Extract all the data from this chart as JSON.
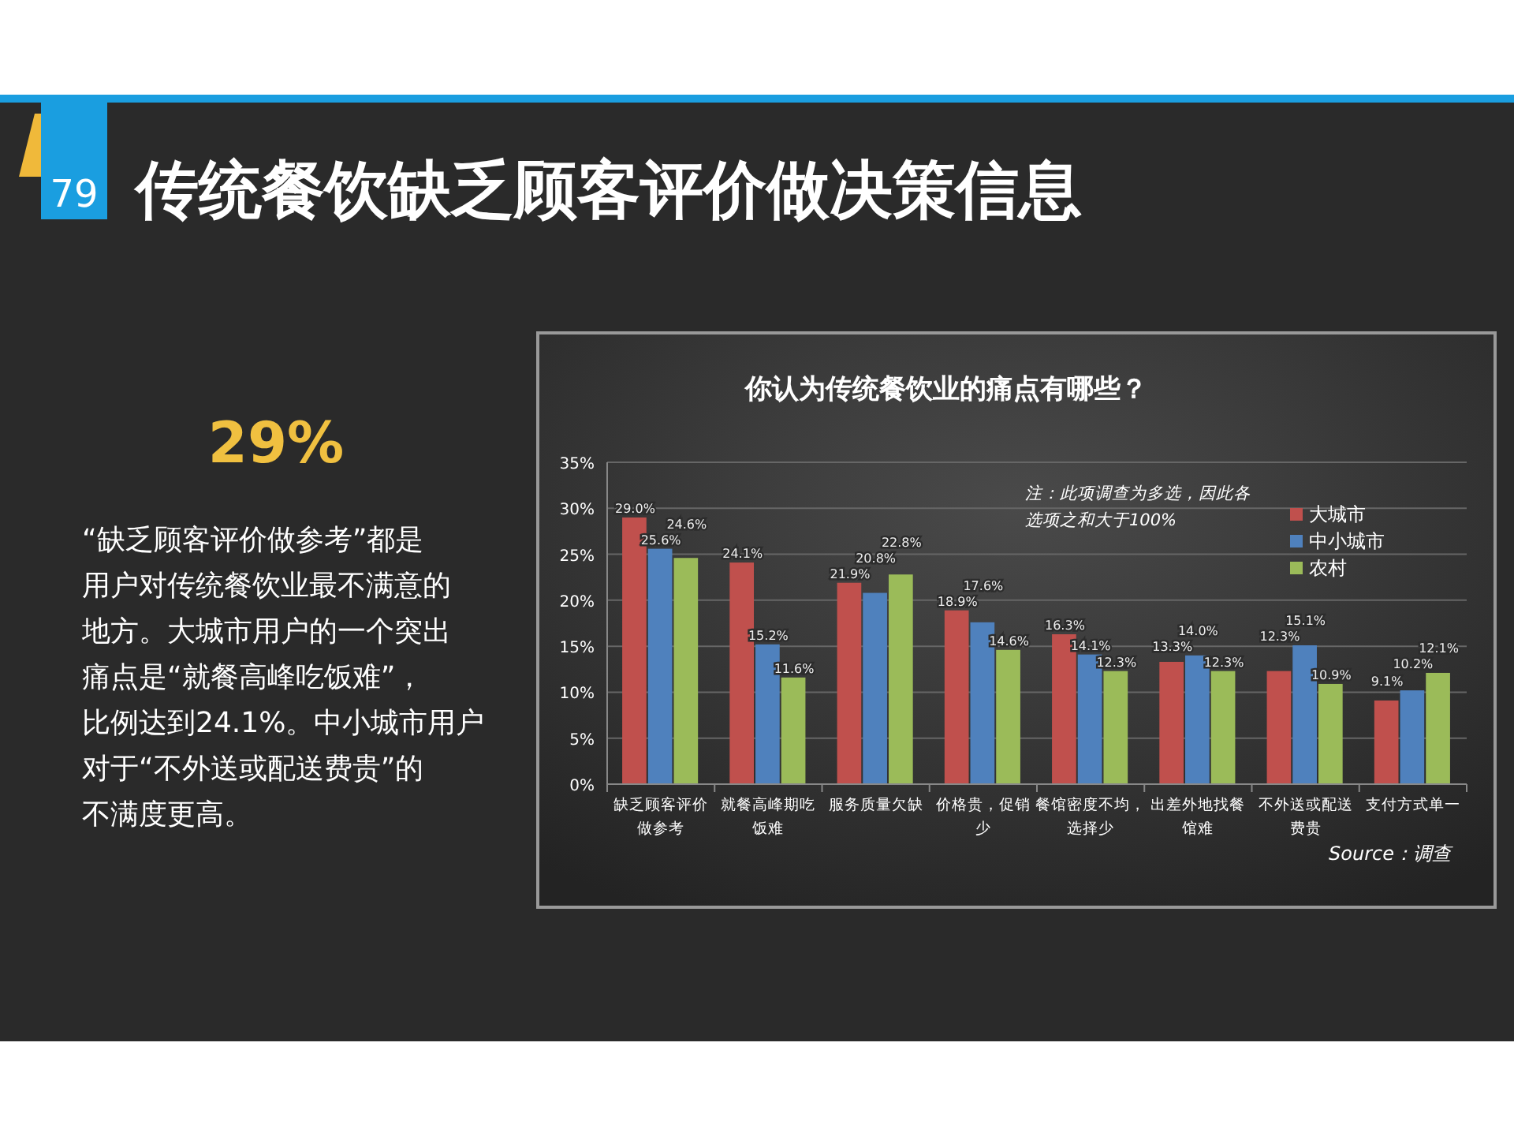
{
  "chart_data": {
    "type": "bar",
    "title": "传统餐饮缺乏顾客评价做决策信息",
    "subtitle": "你认为传统餐饮业的痛点有哪些？",
    "categories": [
      "缺乏顾客评价做参考",
      "就餐高峰期吃饭难",
      "服务质量欠缺",
      "价格贵，促销少",
      "餐馆密度不均，选择少",
      "出差外地找餐馆难",
      "不外送或配送费贵",
      "支付方式单一"
    ],
    "series": [
      {
        "name": "大城市",
        "color": "#c0504d",
        "values": [
          29.0,
          24.1,
          21.9,
          18.9,
          16.3,
          13.3,
          12.3,
          9.1
        ],
        "value_labels": [
          "29.0%",
          "24.1%",
          "21.9%",
          "18.9%",
          "16.3%",
          "13.3%",
          "12.3%",
          "9.1%"
        ]
      },
      {
        "name": "中小城市",
        "color": "#4f81bd",
        "values": [
          25.6,
          15.2,
          20.8,
          17.6,
          14.1,
          14.0,
          15.1,
          10.2
        ],
        "value_labels": [
          "25.6%",
          "15.2%",
          "20.8%",
          "17.6%",
          "14.1%",
          "14.0%",
          "15.1%",
          "10.2%"
        ]
      },
      {
        "name": "农村",
        "color": "#9bbb59",
        "values": [
          24.6,
          11.6,
          22.8,
          14.6,
          12.3,
          12.3,
          10.9,
          12.1
        ],
        "value_labels": [
          "24.6%",
          "11.6%",
          "22.8%",
          "14.6%",
          "12.3%",
          "12.3%",
          "10.9%",
          "12.1%"
        ]
      }
    ],
    "ylim": [
      0,
      35
    ],
    "yticks": [
      {
        "value": 0,
        "label": "0%"
      },
      {
        "value": 5,
        "label": "5%"
      },
      {
        "value": 10,
        "label": "10%"
      },
      {
        "value": 15,
        "label": "15%"
      },
      {
        "value": 20,
        "label": "20%"
      },
      {
        "value": 25,
        "label": "25%"
      },
      {
        "value": 30,
        "label": "30%"
      },
      {
        "value": 35,
        "label": "35%"
      }
    ],
    "grid": "y",
    "legend": "top right",
    "annotations": [
      "79",
      "29%",
      "“缺乏顾客评价做参考”都是用户对传统餐饮业最不满意的地方。大城市用户的一个突出痛点是“就餐高峰吃饭难”，比例达到24.1%。中小城市用户对于“不外送或配送费贵”的不满度更高。",
      "注：此项调查为多选，因此各选项之和大于100%",
      "Source：调查"
    ]
  }
}
